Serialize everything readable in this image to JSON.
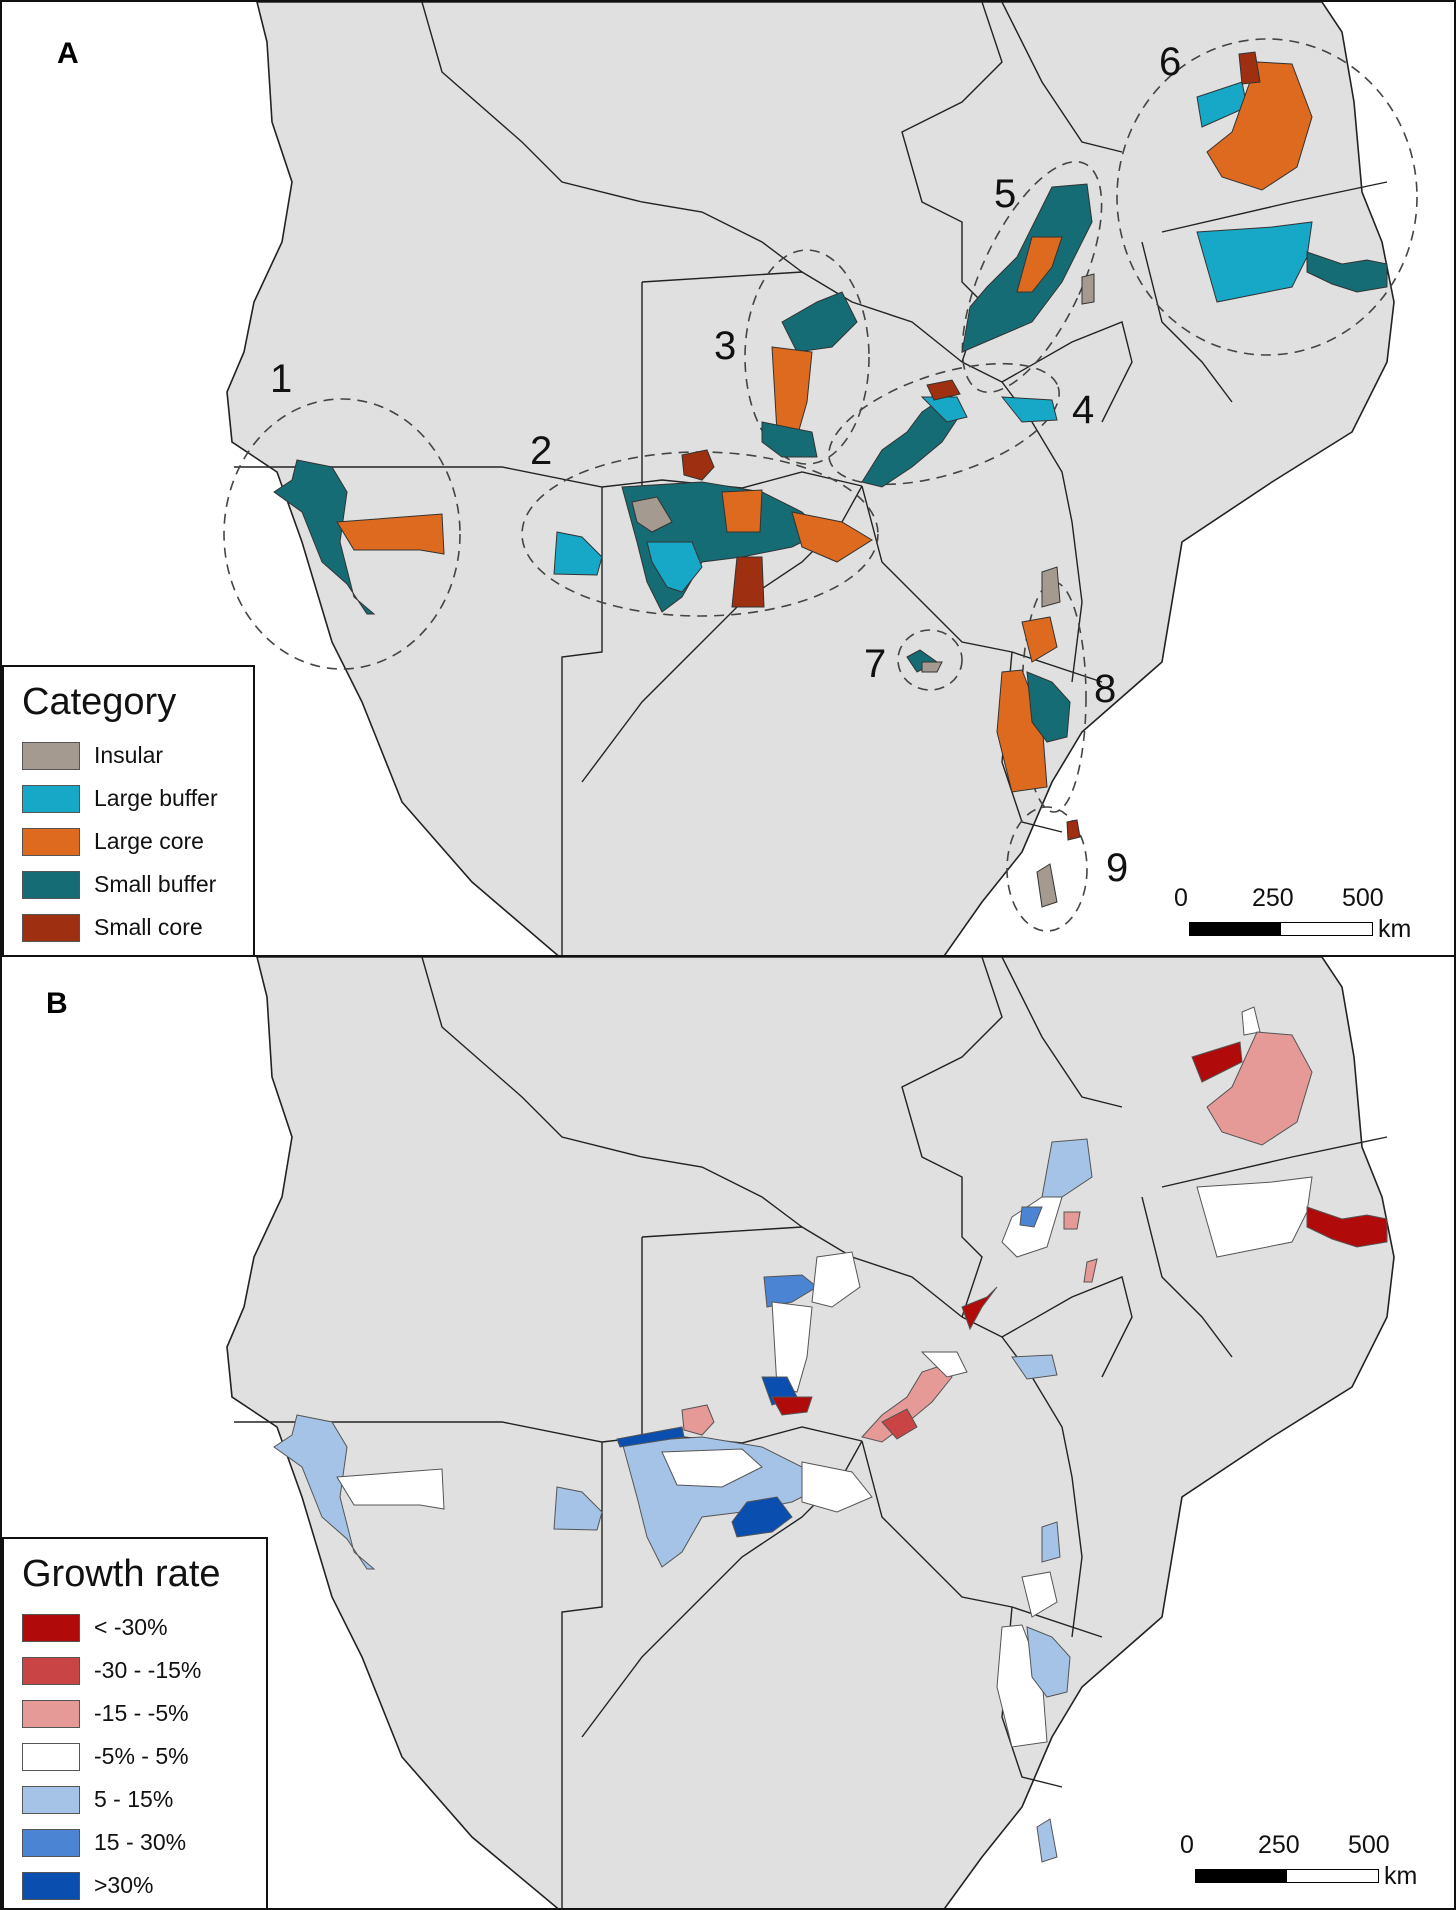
{
  "panels": {
    "a": {
      "letter": "A",
      "legend": {
        "title": "Category",
        "items": [
          {
            "label": "Insular",
            "color": "#a49a90"
          },
          {
            "label": "Large buffer",
            "color": "#16a8c6"
          },
          {
            "label": "Large core",
            "color": "#dd6a1f"
          },
          {
            "label": "Small buffer",
            "color": "#156c74"
          },
          {
            "label": "Small core",
            "color": "#9e2f10"
          }
        ]
      },
      "clusters": [
        "1",
        "2",
        "3",
        "4",
        "5",
        "6",
        "7",
        "8",
        "9"
      ],
      "scale": {
        "ticks": [
          "0",
          "250",
          "500"
        ],
        "unit": "km"
      }
    },
    "b": {
      "letter": "B",
      "legend": {
        "title": "Growth rate",
        "items": [
          {
            "label": "< -30%",
            "color": "#b00a0a"
          },
          {
            "label": "-30 - -15%",
            "color": "#c94444"
          },
          {
            "label": "-15 - -5%",
            "color": "#e59a98"
          },
          {
            "label": "-5% - 5%",
            "color": "#ffffff"
          },
          {
            "label": "5 - 15%",
            "color": "#a4c3e6"
          },
          {
            "label": "15 - 30%",
            "color": "#4a84d2"
          },
          {
            "label": ">30%",
            "color": "#0a4eb0"
          }
        ]
      },
      "scale": {
        "ticks": [
          "0",
          "250",
          "500"
        ],
        "unit": "km"
      }
    }
  },
  "colors": {
    "land": "#e0e0e0",
    "border": "#222222"
  }
}
